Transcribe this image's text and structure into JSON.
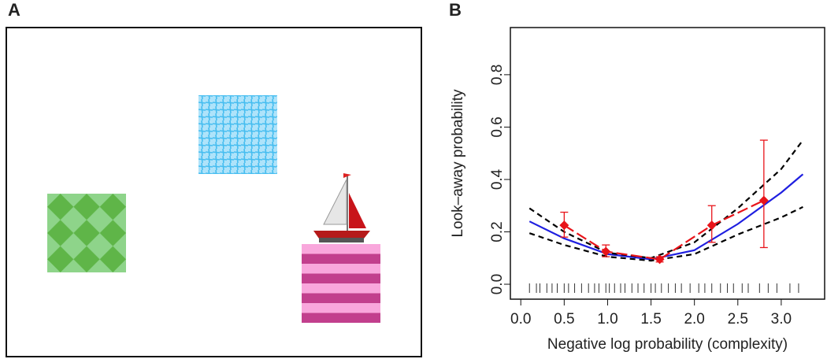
{
  "panel_a": {
    "label": "A"
  },
  "chart_data": {
    "type": "line",
    "panel_label": "B",
    "xlabel": "Negative log probability (complexity)",
    "ylabel": "Look–away probability",
    "xlim": [
      -0.12,
      3.5
    ],
    "ylim": [
      -0.057,
      0.98
    ],
    "xticks": [
      {
        "value": 0,
        "label": "0.0"
      },
      0.5,
      {
        "value": 1,
        "label": "1.0"
      },
      1.5,
      {
        "value": 2,
        "label": "2.0"
      },
      2.5,
      {
        "value": 3,
        "label": "3.0"
      }
    ],
    "yticks": [
      {
        "value": 0,
        "label": "0.0"
      },
      0.2,
      0.4,
      0.6,
      0.8
    ],
    "x": [
      0.1,
      0.5,
      1.0,
      1.5,
      2.0,
      2.5,
      3.0,
      3.25
    ],
    "series": [
      {
        "color": "#1f1fe0",
        "dash": "solid",
        "values": [
          0.24,
          0.175,
          0.115,
          0.095,
          0.13,
          0.23,
          0.35,
          0.42
        ]
      },
      {
        "color": "#000000",
        "dash": "dashed",
        "values": [
          0.29,
          0.2,
          0.12,
          0.1,
          0.16,
          0.29,
          0.44,
          0.55
        ]
      },
      {
        "color": "#000000",
        "dash": "dashed",
        "values": [
          0.195,
          0.15,
          0.105,
          0.09,
          0.115,
          0.19,
          0.255,
          0.295
        ]
      }
    ],
    "points": {
      "color": "#e8141a",
      "x": [
        0.5,
        0.98,
        1.6,
        2.2,
        2.8
      ],
      "values": [
        0.225,
        0.125,
        0.095,
        0.225,
        0.32
      ],
      "low": [
        0.18,
        0.105,
        0.085,
        0.16,
        0.14
      ],
      "high": [
        0.275,
        0.15,
        0.105,
        0.3,
        0.55
      ]
    },
    "rug": [
      0.1,
      0.18,
      0.22,
      0.3,
      0.36,
      0.42,
      0.5,
      0.55,
      0.62,
      0.7,
      0.78,
      0.85,
      0.9,
      0.98,
      1.02,
      1.08,
      1.15,
      1.2,
      1.28,
      1.35,
      1.42,
      1.5,
      1.55,
      1.62,
      1.7,
      1.78,
      1.85,
      1.95,
      2.05,
      2.12,
      2.2,
      2.3,
      2.38,
      2.45,
      2.55,
      2.62,
      2.75,
      2.85,
      2.95,
      3.1,
      3.2
    ]
  }
}
